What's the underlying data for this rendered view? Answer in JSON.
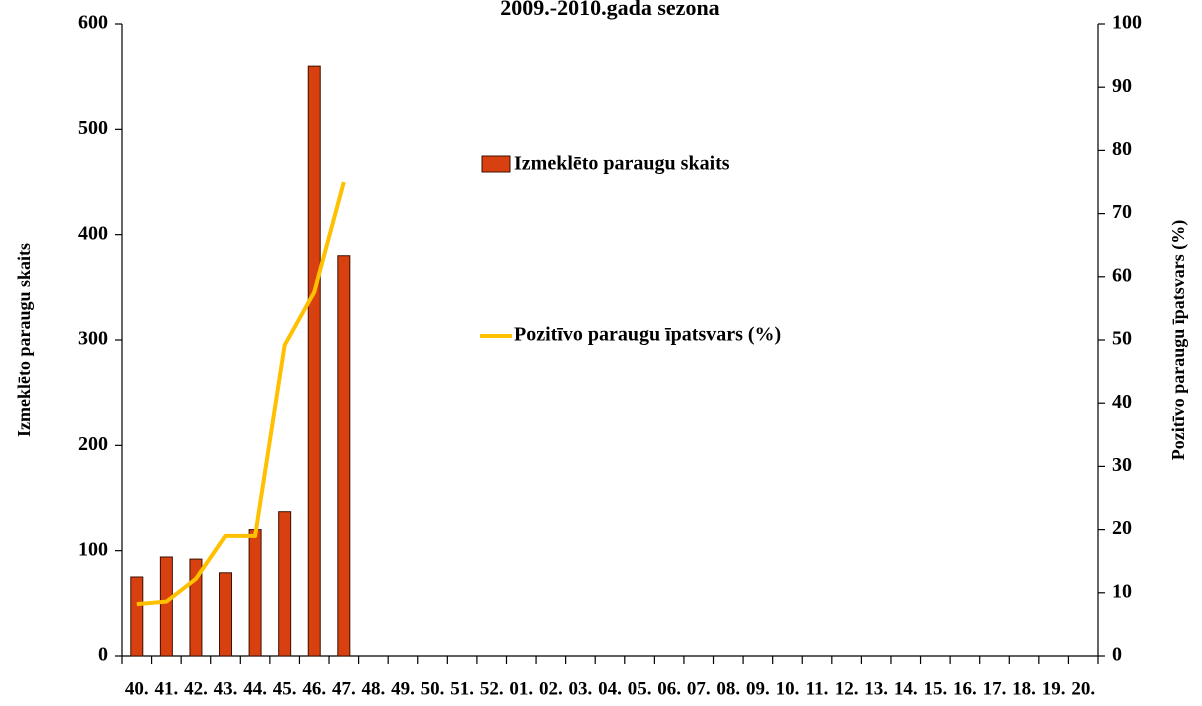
{
  "chart_data": {
    "type": "bar_line",
    "title": "2009.-2010.gada sezona",
    "ylabel": "Izmeklēto paraugu skaits",
    "y2label": "Pozitīvo paraugu īpatsvars (%)",
    "categories": [
      "40.",
      "41.",
      "42.",
      "43.",
      "44.",
      "45.",
      "46.",
      "47.",
      "48.",
      "49.",
      "50.",
      "51.",
      "52.",
      "01.",
      "02.",
      "03.",
      "04.",
      "05.",
      "06.",
      "07.",
      "08.",
      "09.",
      "10.",
      "11.",
      "12.",
      "13.",
      "14.",
      "15.",
      "16.",
      "17.",
      "18.",
      "19.",
      "20."
    ],
    "series": [
      {
        "name": "Izmeklēto paraugu skaits",
        "type": "bar",
        "color": "#d9400f",
        "values": [
          75,
          94,
          92,
          79,
          120,
          137,
          560,
          380,
          null,
          null,
          null,
          null,
          null,
          null,
          null,
          null,
          null,
          null,
          null,
          null,
          null,
          null,
          null,
          null,
          null,
          null,
          null,
          null,
          null,
          null,
          null,
          null,
          null
        ]
      },
      {
        "name": "Pozitīvo paraugu īpatsvars (%)",
        "type": "line",
        "color": "#ffc000",
        "axis": "y2",
        "values": [
          8.2,
          8.6,
          12.2,
          19,
          19,
          49.2,
          57.6,
          75,
          null,
          null,
          null,
          null,
          null,
          null,
          null,
          null,
          null,
          null,
          null,
          null,
          null,
          null,
          null,
          null,
          null,
          null,
          null,
          null,
          null,
          null,
          null,
          null,
          null
        ]
      }
    ],
    "ylim": [
      0,
      600
    ],
    "yticks": [
      0,
      100,
      200,
      300,
      400,
      500,
      600
    ],
    "y2lim": [
      0,
      100
    ],
    "y2ticks": [
      0,
      10,
      20,
      30,
      40,
      50,
      60,
      70,
      80,
      90,
      100
    ],
    "grid": false
  }
}
